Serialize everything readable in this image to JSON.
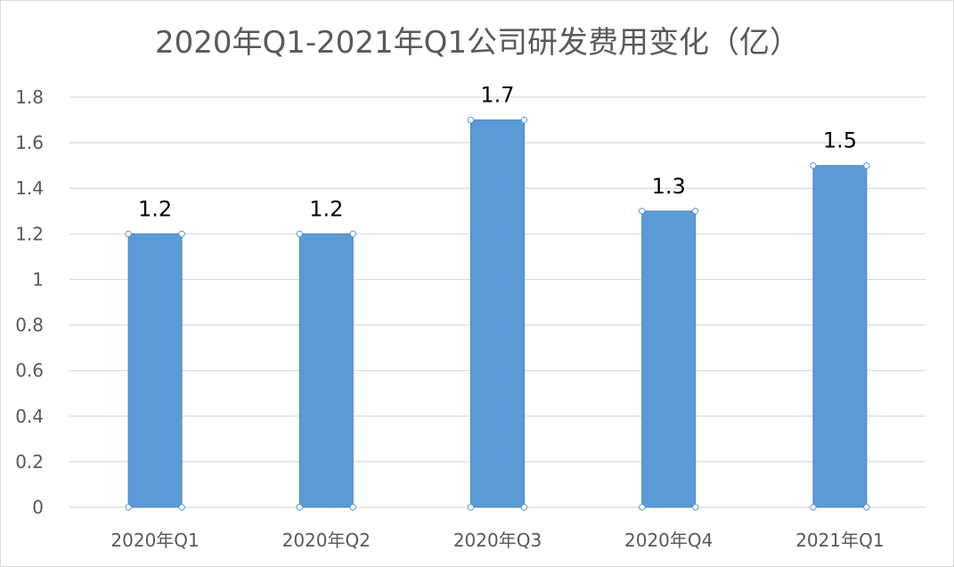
{
  "chart_data": {
    "type": "bar",
    "title": "2020年Q1-2021年Q1公司研发费用变化（亿）",
    "categories": [
      "2020年Q1",
      "2020年Q2",
      "2020年Q3",
      "2020年Q4",
      "2021年Q1"
    ],
    "values": [
      1.2,
      1.2,
      1.7,
      1.3,
      1.5
    ],
    "data_labels": [
      "1.2",
      "1.2",
      "1.7",
      "1.3",
      "1.5"
    ],
    "yticks": [
      "0",
      "0.2",
      "0.4",
      "0.6",
      "0.8",
      "1",
      "1.2",
      "1.4",
      "1.6",
      "1.8"
    ],
    "ylim": [
      0,
      1.8
    ],
    "xlabel": "",
    "ylabel": "",
    "grid": true,
    "legend": "none",
    "colors": {
      "bar": "#5b9bd5",
      "bar_edge": "#4a86c0",
      "grid": "#d9d9d9",
      "handle": "#5b9bd5"
    }
  }
}
